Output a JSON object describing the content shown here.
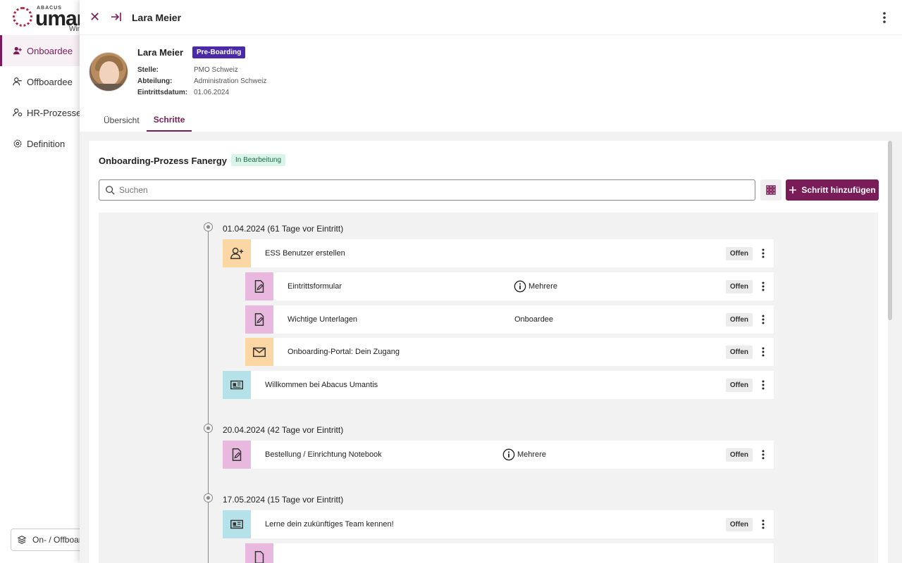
{
  "app": {
    "logo_top": "ABACUS",
    "logo_main": "umantis",
    "logo_sub": "Win",
    "nav": [
      {
        "label": "Onboardee",
        "active": true
      },
      {
        "label": "Offboardee"
      },
      {
        "label": "HR-Prozesse"
      },
      {
        "label": "Definition"
      }
    ],
    "bottom_button": "On- / Offboarding"
  },
  "panel": {
    "header_title": "Lara Meier",
    "profile": {
      "name": "Lara Meier",
      "badge": "Pre-Boarding",
      "fields": [
        {
          "label": "Stelle:",
          "value": "PMO Schweiz"
        },
        {
          "label": "Abteilung:",
          "value": "Administration Schweiz"
        },
        {
          "label": "Eintrittsdatum:",
          "value": "01.06.2024"
        }
      ]
    },
    "tabs": [
      {
        "label": "Übersicht"
      },
      {
        "label": "Schritte",
        "active": true
      }
    ],
    "process": {
      "title": "Onboarding-Prozess Fanergy",
      "status": "In Bearbeitung",
      "search_placeholder": "Suchen",
      "add_button": "Schritt hinzufügen"
    },
    "groups": [
      {
        "date": "01.04.2024 (61 Tage vor Eintritt)"
      },
      {
        "date": "20.04.2024 (42 Tage vor Eintritt)"
      },
      {
        "date": "17.05.2024 (15 Tage vor Eintritt)"
      }
    ],
    "steps": [
      {
        "label": "ESS Benutzer erstellen",
        "mid": "",
        "status": "Offen",
        "icon": "user-plus-icon",
        "color": "#fcd6a3"
      },
      {
        "label": "Eintrittsformular",
        "mid": "Mehrere",
        "status": "Offen",
        "icon": "document-edit-icon",
        "color": "#e8b8df"
      },
      {
        "label": "Wichtige Unterlagen",
        "mid": "Onboardee",
        "status": "Offen",
        "icon": "document-edit-icon",
        "color": "#e8b8df"
      },
      {
        "label": "Onboarding-Portal: Dein Zugang",
        "mid": "",
        "status": "Offen",
        "icon": "envelope-icon",
        "color": "#fcd6a3"
      },
      {
        "label": "Willkommen bei Abacus Umantis",
        "mid": "",
        "status": "Offen",
        "icon": "newspaper-icon",
        "color": "#b4e2e8"
      },
      {
        "label": "Bestellung / Einrichtung Notebook",
        "mid": "Mehrere",
        "status": "Offen",
        "icon": "document-edit-icon",
        "color": "#e8b8df"
      },
      {
        "label": "Lerne dein zukünftiges Team kennen!",
        "mid": "",
        "status": "Offen",
        "icon": "newspaper-icon",
        "color": "#b4e2e8"
      }
    ]
  }
}
